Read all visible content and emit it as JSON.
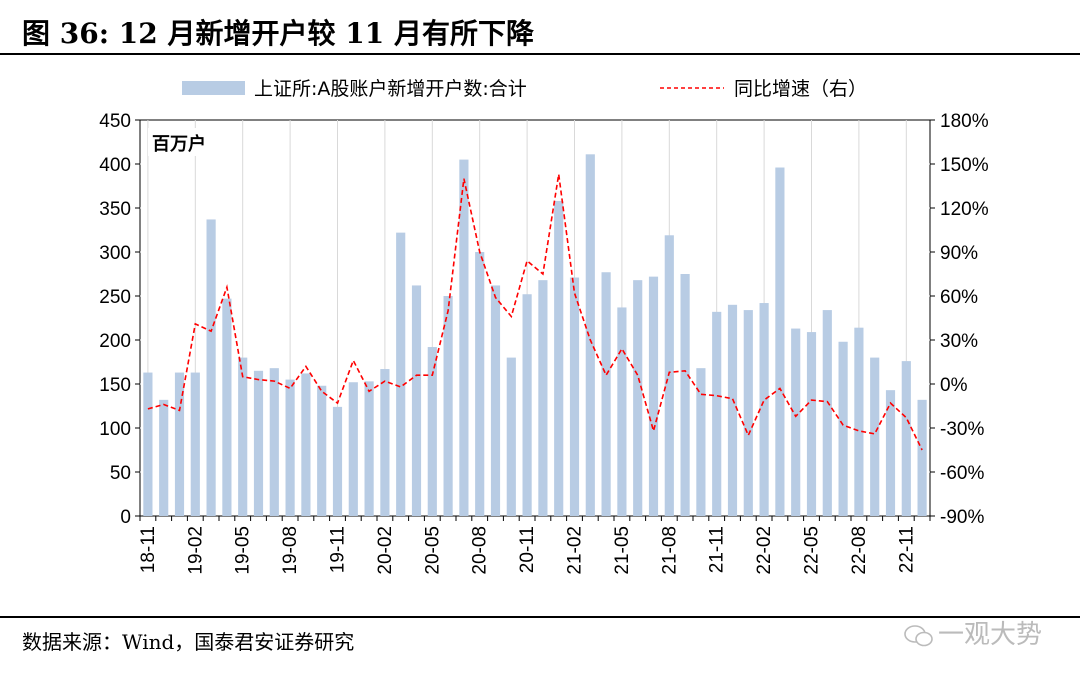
{
  "header": {
    "title": "图 36:  12 月新增开户较 11 月有所下降"
  },
  "footer": {
    "source": "数据来源：Wind，国泰君安证券研究",
    "watermark": "一观大势"
  },
  "chart_data": {
    "type": "bar+line",
    "unit_label": "百万户",
    "left_axis": {
      "ylim": [
        0,
        450
      ],
      "ticks": [
        "0",
        "50",
        "100",
        "150",
        "200",
        "250",
        "300",
        "350",
        "400",
        "450"
      ]
    },
    "right_axis": {
      "ylim": [
        -90,
        180
      ],
      "ticks": [
        "-90%",
        "-60%",
        "-30%",
        "0%",
        "30%",
        "60%",
        "90%",
        "120%",
        "150%",
        "180%"
      ]
    },
    "x": [
      "18-11",
      "18-12",
      "19-01",
      "19-02",
      "19-03",
      "19-04",
      "19-05",
      "19-06",
      "19-07",
      "19-08",
      "19-09",
      "19-10",
      "19-11",
      "19-12",
      "20-01",
      "20-02",
      "20-03",
      "20-04",
      "20-05",
      "20-06",
      "20-07",
      "20-08",
      "20-09",
      "20-10",
      "20-11",
      "20-12",
      "21-01",
      "21-02",
      "21-03",
      "21-04",
      "21-05",
      "21-06",
      "21-07",
      "21-08",
      "21-09",
      "21-10",
      "21-11",
      "21-12",
      "22-01",
      "22-02",
      "22-03",
      "22-04",
      "22-05",
      "22-06",
      "22-07",
      "22-08",
      "22-09",
      "22-10",
      "22-11",
      "22-12"
    ],
    "x_tick_labels": [
      "18-11",
      "19-02",
      "19-05",
      "19-08",
      "19-11",
      "20-02",
      "20-05",
      "20-08",
      "20-11",
      "21-02",
      "21-05",
      "21-08",
      "21-11",
      "22-02",
      "22-05",
      "22-08",
      "22-11"
    ],
    "x_tick_indices": [
      0,
      3,
      6,
      9,
      12,
      15,
      18,
      21,
      24,
      27,
      30,
      33,
      36,
      39,
      42,
      45,
      48
    ],
    "series": [
      {
        "name": "上证所:A股账户新增开户数:合计",
        "kind": "bar",
        "axis": "left",
        "color": "#b8cce4",
        "values": [
          163,
          132,
          163,
          163,
          337,
          247,
          180,
          165,
          168,
          155,
          162,
          148,
          124,
          152,
          153,
          167,
          322,
          262,
          192,
          250,
          405,
          300,
          262,
          180,
          252,
          268,
          358,
          271,
          411,
          277,
          237,
          268,
          272,
          319,
          275,
          168,
          232,
          240,
          234,
          242,
          396,
          213,
          209,
          234,
          198,
          214,
          180,
          143,
          176,
          132
        ]
      },
      {
        "name": "同比增速（右）",
        "kind": "line",
        "axis": "right",
        "color": "#ff0000",
        "dash": "dashed",
        "values": [
          -17,
          -14,
          -18,
          41,
          36,
          66,
          5,
          3,
          2,
          -3,
          12,
          -5,
          -13,
          16,
          -5,
          2,
          -2,
          6,
          6,
          50,
          140,
          90,
          59,
          46,
          84,
          75,
          143,
          62,
          30,
          6,
          24,
          6,
          -32,
          8,
          9,
          -7,
          -8,
          -10,
          -35,
          -11,
          -3,
          -22,
          -11,
          -12,
          -28,
          -32,
          -34,
          -13,
          -23,
          -45
        ]
      }
    ]
  }
}
